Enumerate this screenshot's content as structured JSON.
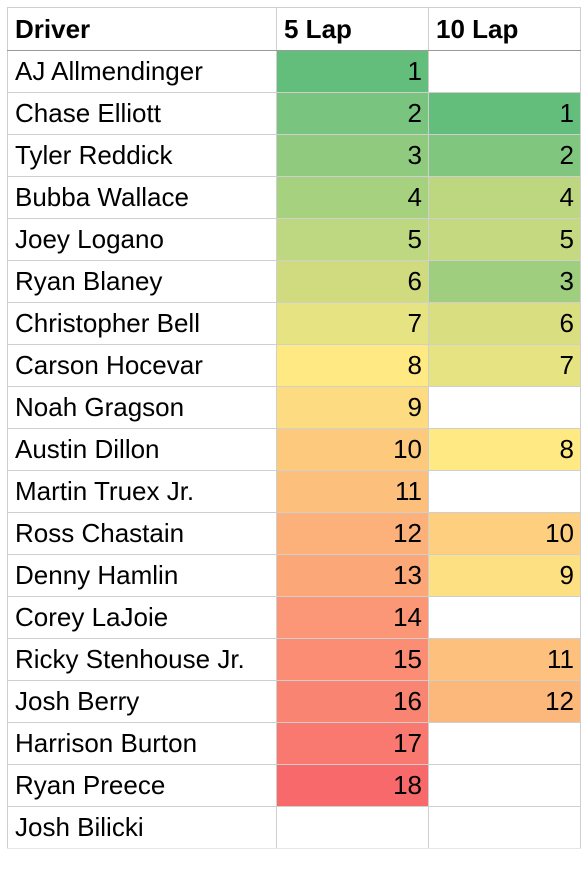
{
  "headers": {
    "driver": "Driver",
    "five_lap": "5 Lap",
    "ten_lap": "10 Lap"
  },
  "rows": [
    {
      "driver": "AJ Allmendinger",
      "five_lap": "1",
      "ten_lap": "",
      "five_color": "#63be7b",
      "ten_color": "#ffffff"
    },
    {
      "driver": "Chase Elliott",
      "five_lap": "2",
      "ten_lap": "1",
      "five_color": "#79c47e",
      "ten_color": "#63be7b"
    },
    {
      "driver": "Tyler Reddick",
      "five_lap": "3",
      "ten_lap": "2",
      "five_color": "#8fca7e",
      "ten_color": "#81c67e"
    },
    {
      "driver": "Bubba Wallace",
      "five_lap": "4",
      "ten_lap": "4",
      "five_color": "#a6d17f",
      "ten_color": "#bcd780"
    },
    {
      "driver": "Joey Logano",
      "five_lap": "5",
      "ten_lap": "5",
      "five_color": "#bed881",
      "ten_color": "#c5d980"
    },
    {
      "driver": "Ryan Blaney",
      "five_lap": "6",
      "ten_lap": "3",
      "five_color": "#d0db80",
      "ten_color": "#9fce7f"
    },
    {
      "driver": "Christopher Bell",
      "five_lap": "7",
      "ten_lap": "6",
      "five_color": "#e6e482",
      "ten_color": "#d9df81"
    },
    {
      "driver": "Carson Hocevar",
      "five_lap": "8",
      "ten_lap": "7",
      "five_color": "#fee983",
      "ten_color": "#e6e482"
    },
    {
      "driver": "Noah Gragson",
      "five_lap": "9",
      "ten_lap": "",
      "five_color": "#fddc81",
      "ten_color": "#ffffff"
    },
    {
      "driver": "Austin Dillon",
      "five_lap": "10",
      "ten_lap": "8",
      "five_color": "#fdca7d",
      "ten_color": "#fee983"
    },
    {
      "driver": "Martin Truex Jr.",
      "five_lap": "11",
      "ten_lap": "",
      "five_color": "#fcc07c",
      "ten_color": "#ffffff"
    },
    {
      "driver": "Ross Chastain",
      "five_lap": "12",
      "ten_lap": "10",
      "five_color": "#fcb17a",
      "ten_color": "#fdcf7f"
    },
    {
      "driver": "Denny Hamlin",
      "five_lap": "13",
      "ten_lap": "9",
      "five_color": "#fba778",
      "ten_color": "#fde081"
    },
    {
      "driver": "Corey LaJoie",
      "five_lap": "14",
      "ten_lap": "",
      "five_color": "#fb9776",
      "ten_color": "#ffffff"
    },
    {
      "driver": "Ricky Stenhouse Jr.",
      "five_lap": "15",
      "ten_lap": "11",
      "five_color": "#fa8d74",
      "ten_color": "#fdc07d"
    },
    {
      "driver": "Josh Berry",
      "five_lap": "16",
      "ten_lap": "12",
      "five_color": "#fa8472",
      "ten_color": "#fcb77b"
    },
    {
      "driver": "Harrison Burton",
      "five_lap": "17",
      "ten_lap": "",
      "five_color": "#f97870",
      "ten_color": "#ffffff"
    },
    {
      "driver": "Ryan Preece",
      "five_lap": "18",
      "ten_lap": "",
      "five_color": "#f8696b",
      "ten_color": "#ffffff"
    },
    {
      "driver": "Josh Bilicki",
      "five_lap": "",
      "ten_lap": "",
      "five_color": "#ffffff",
      "ten_color": "#ffffff"
    }
  ]
}
